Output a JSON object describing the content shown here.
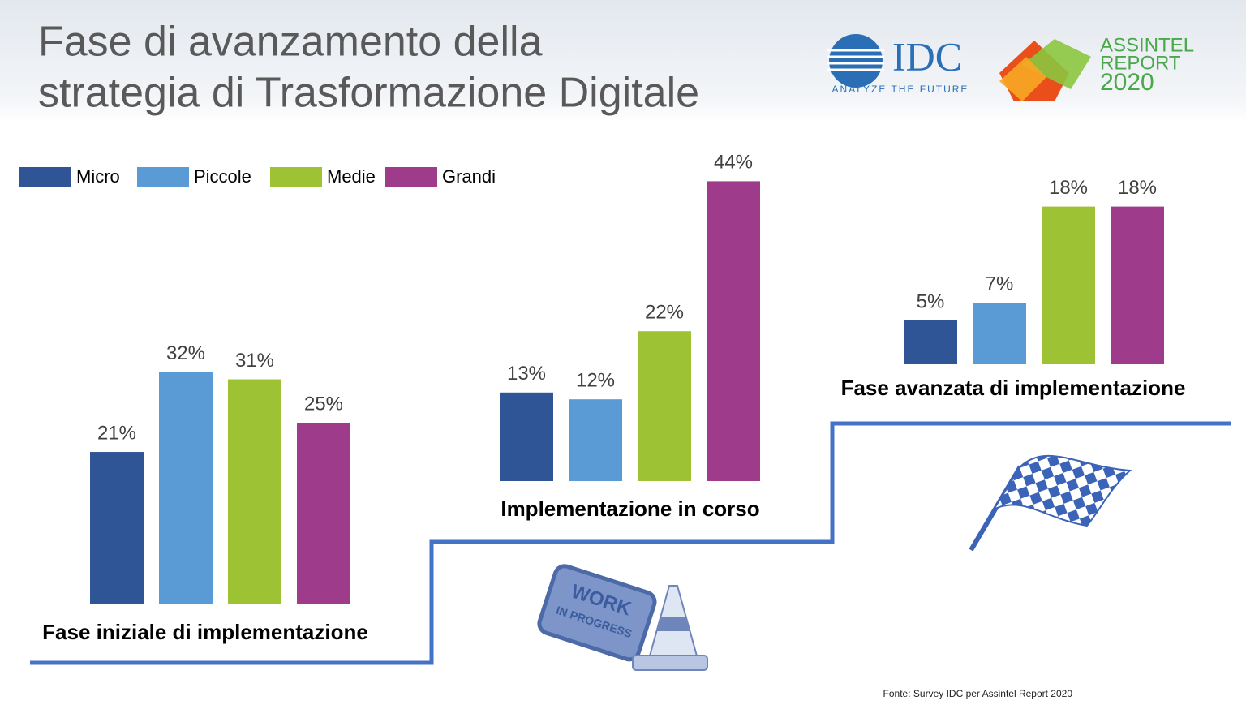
{
  "chart_data": {
    "type": "bar",
    "title": [
      "Fase di avanzamento della",
      "strategia di Trasformazione Digitale"
    ],
    "categories": [
      "Fase iniziale di implementazione",
      "Implementazione in corso",
      "Fase avanzata di implementazione"
    ],
    "series": [
      {
        "name": "Micro",
        "color": "#2f5597",
        "values": [
          21,
          13,
          5
        ],
        "value_labels": [
          "21%",
          "13%",
          "5%"
        ]
      },
      {
        "name": "Piccole",
        "color": "#5b9bd5",
        "values": [
          32,
          12,
          7
        ],
        "value_labels": [
          "32%",
          "12%",
          "7%"
        ]
      },
      {
        "name": "Medie",
        "color": "#9dc335",
        "values": [
          31,
          22,
          18
        ],
        "value_labels": [
          "31%",
          "22%",
          "18%"
        ]
      },
      {
        "name": "Grandi",
        "color": "#9e3b8b",
        "values": [
          25,
          44,
          18
        ],
        "value_labels": [
          "25%",
          "44%",
          "18%"
        ]
      }
    ],
    "legend": "top-left",
    "source": "Fonte: Survey IDC per Assintel Report 2020"
  },
  "logos": {
    "idc": "IDC",
    "idc_tagline": "ANALYZE THE FUTURE",
    "assintel": [
      "ASSINTEL",
      "REPORT",
      "2020"
    ]
  },
  "icons": {
    "work_sign": [
      "WORK",
      "IN PROGRESS"
    ]
  }
}
